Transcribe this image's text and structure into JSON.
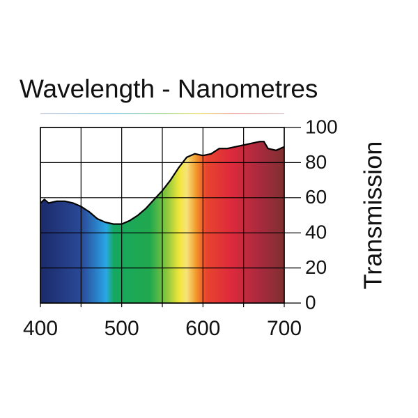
{
  "chart_data": {
    "type": "area",
    "title": "Wavelength - Nanometres",
    "y_label": "Transmission",
    "x": [
      400,
      405,
      410,
      420,
      430,
      440,
      450,
      460,
      470,
      480,
      490,
      500,
      510,
      520,
      530,
      540,
      550,
      560,
      570,
      580,
      590,
      600,
      610,
      620,
      630,
      640,
      650,
      660,
      670,
      675,
      680,
      690,
      700
    ],
    "values": [
      57,
      59,
      57,
      58,
      58,
      57,
      55,
      52,
      48,
      46,
      45,
      45,
      47,
      50,
      54,
      59,
      64,
      70,
      77,
      83,
      85,
      84,
      85,
      88,
      88,
      89,
      90,
      91,
      92,
      92,
      88,
      87,
      89
    ],
    "color": "#000000",
    "xlim": [
      400,
      700
    ],
    "xticks": [
      400,
      500,
      600,
      700
    ],
    "xgrid": [
      400,
      450,
      500,
      550,
      600,
      650,
      700
    ],
    "ylim": [
      0,
      100
    ],
    "yticks": [
      0,
      20,
      40,
      60,
      80,
      100
    ],
    "grid": true
  }
}
